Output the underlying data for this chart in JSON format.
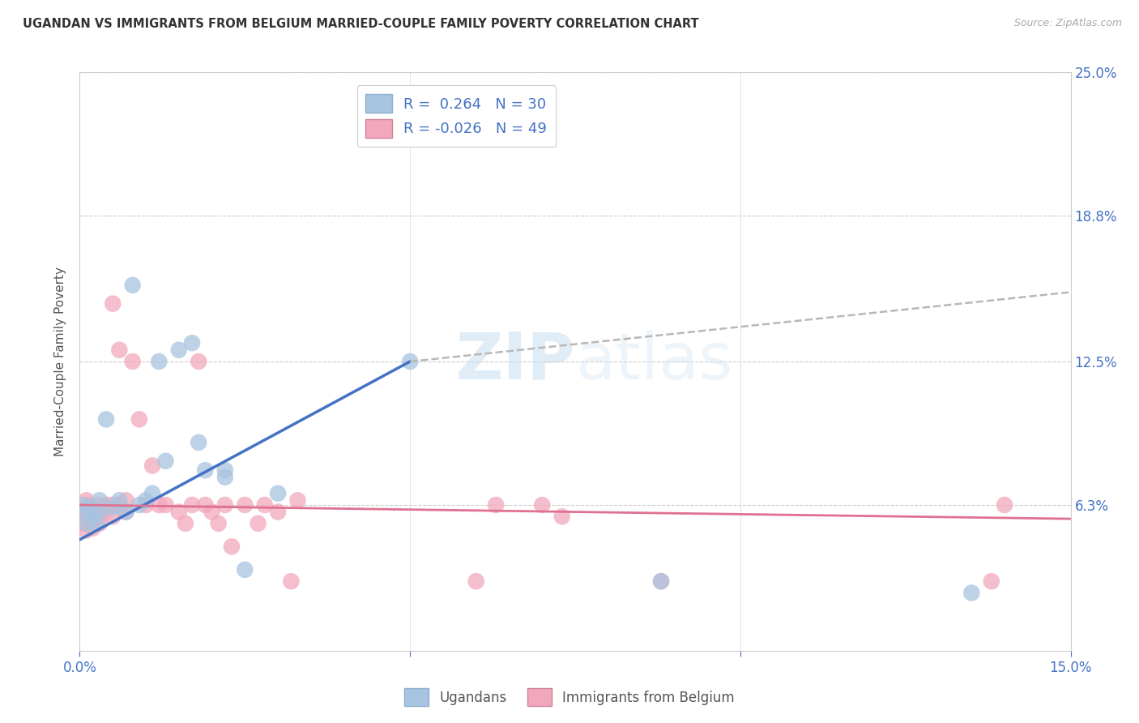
{
  "title": "UGANDAN VS IMMIGRANTS FROM BELGIUM MARRIED-COUPLE FAMILY POVERTY CORRELATION CHART",
  "source": "Source: ZipAtlas.com",
  "ylabel": "Married-Couple Family Poverty",
  "xlim": [
    0,
    0.15
  ],
  "ylim": [
    0,
    0.25
  ],
  "xticks": [
    0.0,
    0.05,
    0.1,
    0.15
  ],
  "xticklabels": [
    "0.0%",
    "",
    "",
    "15.0%"
  ],
  "ytick_labels_right": [
    "6.3%",
    "12.5%",
    "18.8%",
    "25.0%"
  ],
  "ytick_values_right": [
    0.063,
    0.125,
    0.188,
    0.25
  ],
  "ugandan_color": "#a8c4e0",
  "belgium_color": "#f2a8bc",
  "blue_line_color": "#4472c4",
  "pink_line_color": "#e07090",
  "dashed_line_color": "#b8b8b8",
  "watermark_text": "ZIPatlas",
  "ugandan_x": [
    0.0005,
    0.001,
    0.001,
    0.0015,
    0.002,
    0.002,
    0.0025,
    0.003,
    0.003,
    0.004,
    0.005,
    0.006,
    0.007,
    0.008,
    0.009,
    0.01,
    0.011,
    0.012,
    0.013,
    0.015,
    0.017,
    0.018,
    0.019,
    0.022,
    0.022,
    0.025,
    0.03,
    0.05,
    0.088,
    0.135
  ],
  "ugandan_y": [
    0.063,
    0.06,
    0.055,
    0.062,
    0.058,
    0.06,
    0.055,
    0.065,
    0.06,
    0.1,
    0.062,
    0.065,
    0.06,
    0.158,
    0.063,
    0.065,
    0.068,
    0.125,
    0.082,
    0.13,
    0.133,
    0.09,
    0.078,
    0.078,
    0.075,
    0.035,
    0.068,
    0.125,
    0.03,
    0.025
  ],
  "belgium_x": [
    0.0003,
    0.0005,
    0.001,
    0.001,
    0.001,
    0.0015,
    0.002,
    0.002,
    0.002,
    0.003,
    0.003,
    0.003,
    0.004,
    0.004,
    0.005,
    0.005,
    0.005,
    0.006,
    0.006,
    0.007,
    0.007,
    0.008,
    0.009,
    0.01,
    0.011,
    0.012,
    0.013,
    0.015,
    0.016,
    0.017,
    0.018,
    0.019,
    0.02,
    0.021,
    0.022,
    0.023,
    0.025,
    0.027,
    0.028,
    0.03,
    0.032,
    0.033,
    0.06,
    0.063,
    0.07,
    0.073,
    0.088,
    0.138,
    0.14
  ],
  "belgium_y": [
    0.055,
    0.06,
    0.065,
    0.058,
    0.052,
    0.063,
    0.06,
    0.058,
    0.053,
    0.063,
    0.058,
    0.055,
    0.063,
    0.06,
    0.15,
    0.063,
    0.058,
    0.13,
    0.063,
    0.065,
    0.06,
    0.125,
    0.1,
    0.063,
    0.08,
    0.063,
    0.063,
    0.06,
    0.055,
    0.063,
    0.125,
    0.063,
    0.06,
    0.055,
    0.063,
    0.045,
    0.063,
    0.055,
    0.063,
    0.06,
    0.03,
    0.065,
    0.03,
    0.063,
    0.063,
    0.058,
    0.03,
    0.03,
    0.063
  ]
}
